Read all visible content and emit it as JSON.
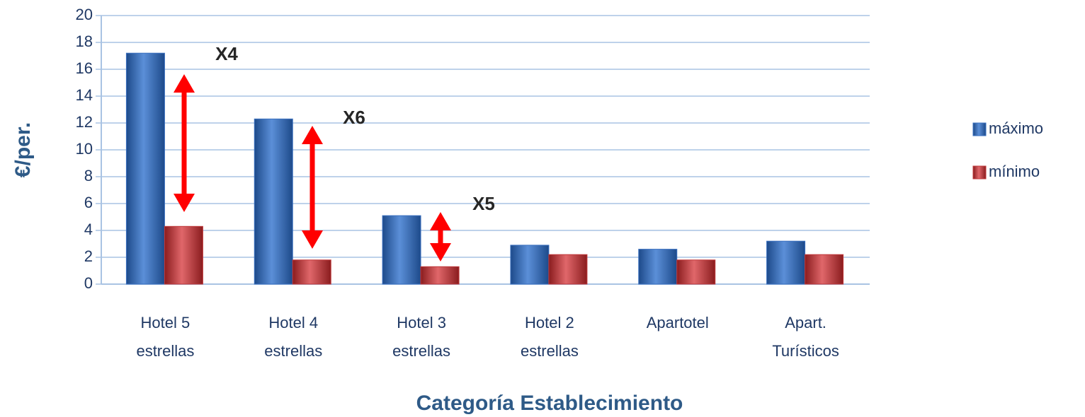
{
  "chart_data": {
    "type": "bar",
    "categories": [
      "Hotel 5 estrellas",
      "Hotel 4 estrellas",
      "Hotel 3 estrellas",
      "Hotel 2 estrellas",
      "Apartotel",
      "Apart. Turísticos"
    ],
    "series": [
      {
        "name": "máximo",
        "color": "#3a70c0",
        "values": [
          17.2,
          12.3,
          5.1,
          2.9,
          2.6,
          3.2
        ]
      },
      {
        "name": "mínimo",
        "color": "#c0393b",
        "values": [
          4.3,
          1.8,
          1.3,
          2.2,
          1.8,
          2.2
        ]
      }
    ],
    "xlabel": "Categoría Establecimiento",
    "ylabel": "€/per.",
    "ylim": [
      0,
      20
    ],
    "yticks": [
      0,
      2,
      4,
      6,
      8,
      10,
      12,
      14,
      16,
      18,
      20
    ],
    "grid": true,
    "legend": "right",
    "annotations": [
      "X4",
      "X6",
      "X5"
    ]
  }
}
